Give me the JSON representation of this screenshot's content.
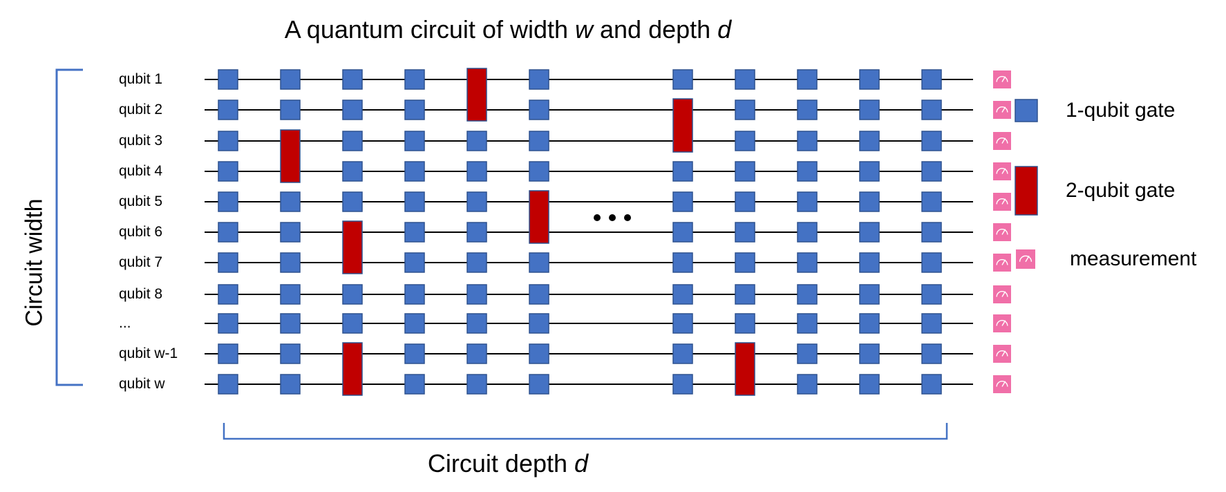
{
  "title": {
    "prefix": "A quantum circuit of width ",
    "w": "w",
    "middle": " and depth ",
    "d": "d"
  },
  "y_axis_label": "Circuit width",
  "x_axis_label": {
    "prefix": "Circuit depth ",
    "d": "d"
  },
  "qubits": [
    "qubit 1",
    "qubit 2",
    "qubit 3",
    "qubit 4",
    "qubit 5",
    "qubit 6",
    "qubit 7",
    "qubit 8",
    "...",
    "qubit w-1",
    "qubit w"
  ],
  "ellipsis": "• • •",
  "colors": {
    "one_qubit_gate": "#4472C4",
    "two_qubit_gate": "#C00000",
    "measurement": "#F06FA8",
    "bracket": "#4472C4",
    "wire": "#000000"
  },
  "legend": [
    {
      "type": "one-qubit",
      "label": "1-qubit gate"
    },
    {
      "type": "two-qubit",
      "label": "2-qubit gate"
    },
    {
      "type": "measurement",
      "label": "measurement"
    }
  ],
  "circuit": {
    "columns": 11,
    "ellipsis_after_column": 6,
    "two_qubit_gates": [
      {
        "column": 5,
        "qubits": [
          1,
          2
        ]
      },
      {
        "column": 2,
        "qubits": [
          3,
          4
        ]
      },
      {
        "column": 6,
        "qubits": [
          5,
          6
        ]
      },
      {
        "column": 3,
        "qubits": [
          6,
          7
        ]
      },
      {
        "column": 3,
        "qubits": [
          10,
          11
        ]
      },
      {
        "column": 7,
        "qubits": [
          2,
          3
        ]
      },
      {
        "column": 8,
        "qubits": [
          10,
          11
        ]
      }
    ],
    "measurement_column": "final"
  }
}
